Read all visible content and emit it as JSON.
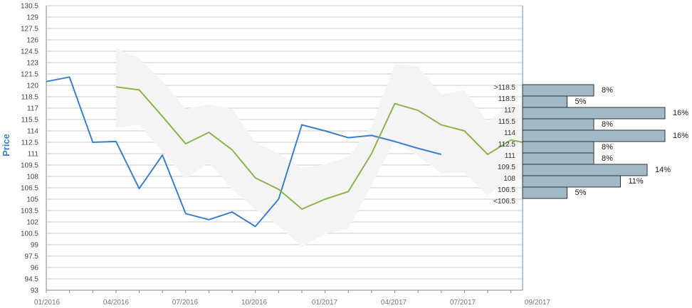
{
  "chart_data": [
    {
      "type": "line",
      "ylabel": "Price",
      "ylim": [
        93,
        130.5
      ],
      "y_ticks": [
        "93",
        "94.5",
        "96",
        "97.5",
        "99",
        "100.5",
        "102",
        "103.5",
        "105",
        "106.5",
        "108",
        "109.5",
        "111",
        "112.5",
        "114",
        "115.5",
        "117",
        "118.5",
        "120",
        "121.5",
        "123",
        "124.5",
        "126",
        "127.5",
        "129",
        "130.5"
      ],
      "x_tick_labels": [
        "01/2016",
        "04/2016",
        "07/2016",
        "10/2016",
        "01/2017",
        "04/2017",
        "07/2017",
        "09/2017"
      ],
      "x_range": [
        0,
        20.5
      ],
      "grid": true,
      "series": [
        {
          "color": "#3a7fce",
          "x": [
            0,
            1,
            2,
            3,
            4,
            5,
            6,
            7,
            8,
            9,
            10,
            11,
            12,
            13,
            14,
            15,
            16,
            17
          ],
          "values": [
            120.5,
            121.1,
            112.5,
            112.6,
            106.4,
            110.8,
            103.1,
            102.3,
            103.3,
            101.4,
            105.0,
            114.8,
            114.0,
            113.1,
            113.4,
            112.6,
            111.7,
            110.9
          ]
        },
        {
          "color": "#8db34a",
          "x": [
            3,
            4,
            5,
            6,
            7,
            8,
            9,
            10,
            11,
            12,
            13,
            14,
            15,
            16,
            17,
            18,
            19,
            20,
            20.5
          ],
          "values": [
            119.8,
            119.4,
            115.9,
            112.3,
            113.8,
            111.5,
            107.8,
            106.3,
            103.7,
            105.0,
            106.0,
            111.0,
            117.6,
            116.7,
            114.8,
            114.0,
            110.9,
            112.8,
            112.5
          ]
        }
      ],
      "band": {
        "color": "#f4f4f4",
        "x": [
          3,
          4,
          5,
          6,
          7,
          8,
          9,
          10,
          11,
          12,
          13,
          14,
          15,
          16,
          17,
          18,
          19,
          20,
          20.5
        ],
        "upper": [
          124.9,
          123.6,
          120.6,
          116.9,
          117.5,
          116.9,
          112.5,
          111.0,
          109.1,
          109.6,
          110.6,
          114.6,
          122.8,
          122.5,
          118.8,
          119.4,
          115.1,
          117.8,
          117.3
        ],
        "lower": [
          114.4,
          114.8,
          111.3,
          107.7,
          109.8,
          106.3,
          103.7,
          101.5,
          98.7,
          100.4,
          101.1,
          106.9,
          112.6,
          110.7,
          108.4,
          108.5,
          105.5,
          108.0,
          107.5
        ]
      }
    },
    {
      "type": "bar",
      "orientation": "horizontal",
      "categories": [
        ">118.5",
        "118.5",
        "117",
        "115.5",
        "114",
        "112.5",
        "111",
        "109.5",
        "108",
        "106.5",
        "<106.5"
      ],
      "values": [
        8,
        5,
        16,
        8,
        16,
        8,
        8,
        14,
        11,
        5,
        0
      ],
      "labels": [
        "8%",
        "5%",
        "16%",
        "8%",
        "16%",
        "8%",
        "8%",
        "14%",
        "11%",
        "5%",
        ""
      ],
      "bar_color": "#a1b9c6",
      "bar_edge": "#333333"
    }
  ]
}
